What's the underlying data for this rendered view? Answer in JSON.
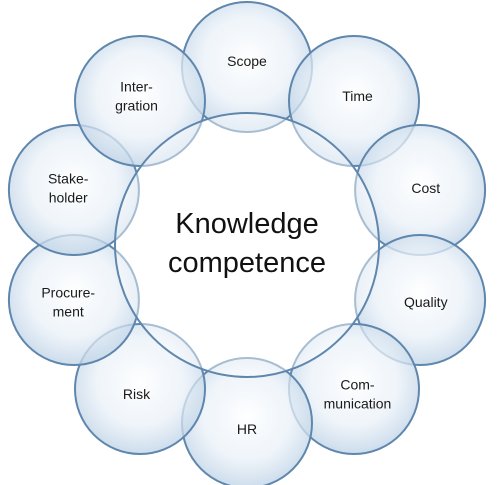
{
  "diagram": {
    "center": {
      "lines": [
        "Knowledge",
        "competence"
      ]
    },
    "areas": [
      {
        "id": "scope",
        "lines": [
          "Scope"
        ]
      },
      {
        "id": "time",
        "lines": [
          "Time"
        ]
      },
      {
        "id": "cost",
        "lines": [
          "Cost"
        ]
      },
      {
        "id": "quality",
        "lines": [
          "Quality"
        ]
      },
      {
        "id": "communication",
        "lines": [
          "Com-",
          "munication"
        ]
      },
      {
        "id": "hr",
        "lines": [
          "HR"
        ]
      },
      {
        "id": "risk",
        "lines": [
          "Risk"
        ]
      },
      {
        "id": "procurement",
        "lines": [
          "Procure-",
          "ment"
        ]
      },
      {
        "id": "stakeholder",
        "lines": [
          "Stake-",
          "holder"
        ]
      },
      {
        "id": "integration",
        "lines": [
          "Inter-",
          "gration"
        ]
      }
    ],
    "colors": {
      "circle_fill_center": "#ffffff",
      "circle_fill_edge": "#b6cde3",
      "circle_stroke": "#5f87ad",
      "text": "#1a1a1a"
    }
  }
}
